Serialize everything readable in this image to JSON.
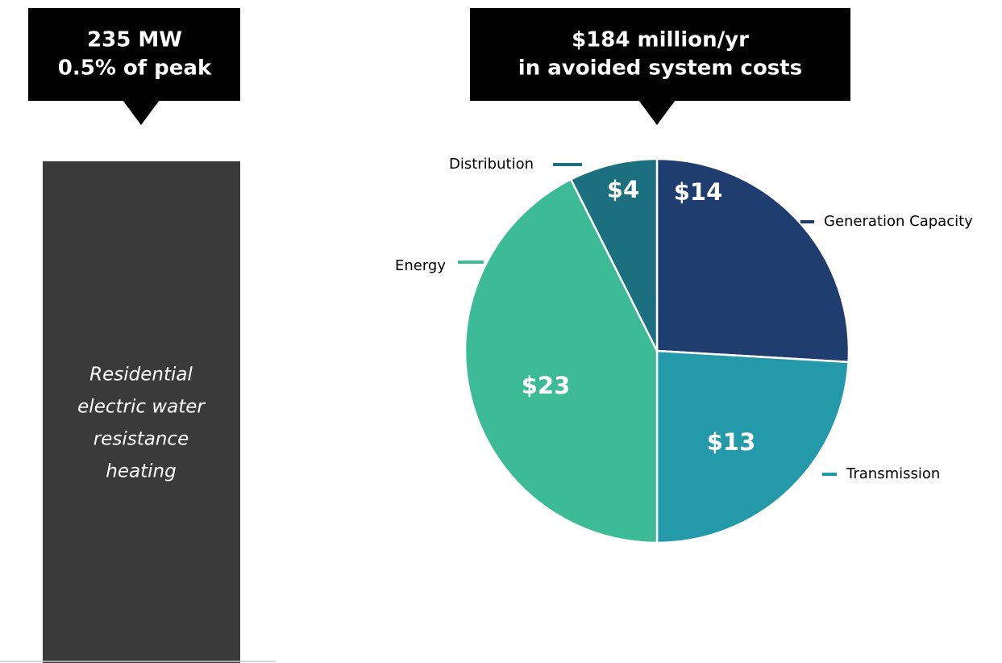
{
  "left_callout": {
    "lines": [
      "235 MW",
      "0.5% of peak"
    ]
  },
  "bar": {
    "label_lines": [
      "Residential",
      "electric water",
      "resistance",
      "heating"
    ]
  },
  "chart_data": {
    "type": "pie",
    "title_lines": [
      "$184 million/yr",
      "in avoided system costs"
    ],
    "categories": [
      "Generation Capacity",
      "Transmission",
      "Energy",
      "Distribution"
    ],
    "values": [
      14,
      13,
      23,
      4
    ],
    "value_labels": [
      "$14",
      "$13",
      "$23",
      "$4"
    ],
    "colors": [
      "#1f3d6e",
      "#2499aa",
      "#3dbb96",
      "#1b6f7f"
    ]
  }
}
